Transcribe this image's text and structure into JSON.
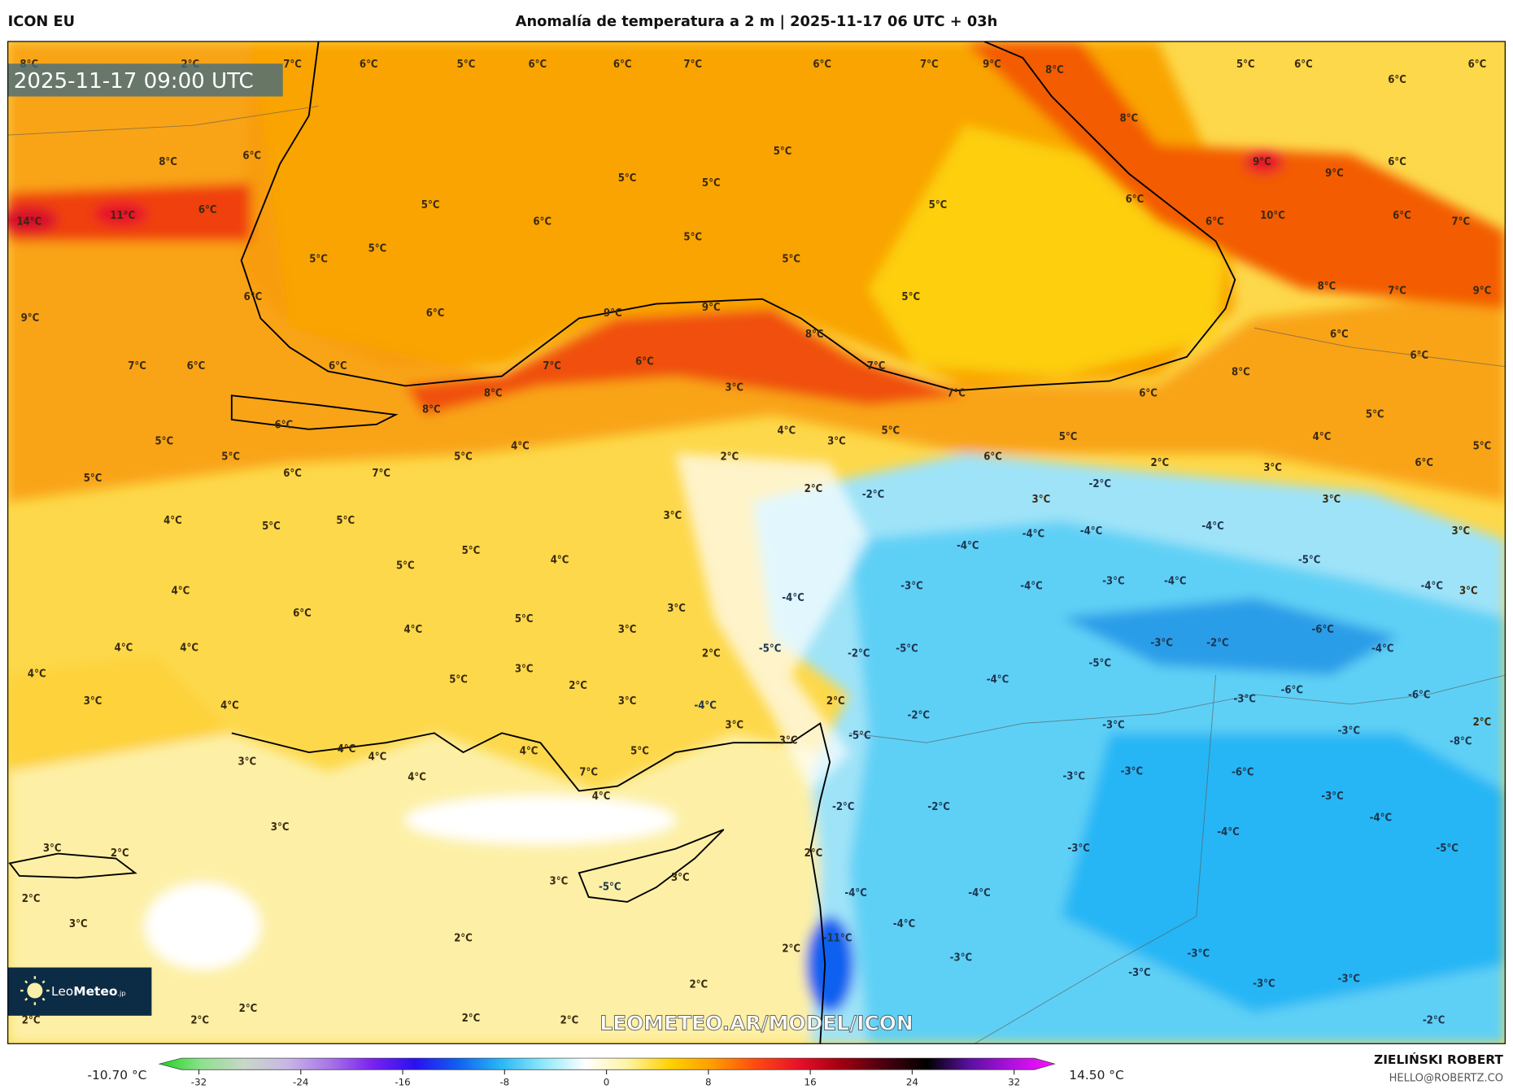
{
  "header": {
    "model": "ICON EU",
    "title": "Anomalía de temperatura a 2 m | 2025-11-17 06 UTC + 03h"
  },
  "map": {
    "valid_time": "2025-11-17 09:00 UTC",
    "watermark": "LEOMETEO.AR/MODEL/ICON",
    "logo": {
      "text_light": "Leo",
      "text_bold": "Meteo",
      "suffix": ".jp"
    },
    "colors": {
      "black_sea": "#f9a400",
      "land_warm": "#fdd23a",
      "sea_pale": "#fdf0a6",
      "cold": "#5fd0f5",
      "very_cold": "#1ba6e8",
      "hot": "#f35b06",
      "logo_bg": "#0c2b45"
    },
    "labels": [
      "8°C",
      "2°C",
      "7°C",
      "6°C",
      "5°C",
      "6°C",
      "6°C",
      "7°C",
      "6°C",
      "7°C",
      "9°C",
      "8°C",
      "5°C",
      "6°C",
      "6°C",
      "6°C",
      "8°C",
      "5°C",
      "8°C",
      "6°C",
      "5°C",
      "5°C",
      "9°C",
      "9°C",
      "6°C",
      "14°C",
      "11°C",
      "6°C",
      "5°C",
      "6°C",
      "5°C",
      "6°C",
      "6°C",
      "10°C",
      "6°C",
      "7°C",
      "5°C",
      "5°C",
      "5°C",
      "5°C",
      "8°C",
      "7°C",
      "9°C",
      "6°C",
      "5°C",
      "9°C",
      "6°C",
      "9°C",
      "9°C",
      "8°C",
      "6°C",
      "6°C",
      "7°C",
      "6°C",
      "6°C",
      "7°C",
      "6°C",
      "7°C",
      "8°C",
      "3°C",
      "7°C",
      "6°C",
      "8°C",
      "8°C",
      "5°C",
      "6°C",
      "4°C",
      "5°C",
      "3°C",
      "5°C",
      "4°C",
      "5°C",
      "4°C",
      "5°C",
      "5°C",
      "2°C",
      "6°C",
      "2°C",
      "5°C",
      "6°C",
      "5°C",
      "6°C",
      "7°C",
      "-2°C",
      "3°C",
      "2°C",
      "-2°C",
      "3°C",
      "3°C",
      "4°C",
      "5°C",
      "5°C",
      "3°C",
      "-4°C",
      "-4°C",
      "-4°C",
      "3°C",
      "5°C",
      "4°C",
      "-4°C",
      "-5°C",
      "5°C",
      "4°C",
      "-4°C",
      "-3°C",
      "-3°C",
      "-4°C",
      "-4°C",
      "3°C",
      "-4°C",
      "3°C",
      "6°C",
      "5°C",
      "-6°C",
      "4°C",
      "3°C",
      "-5°C",
      "-2°C",
      "-5°C",
      "-3°C",
      "-2°C",
      "-4°C",
      "4°C",
      "4°C",
      "2°C",
      "4°C",
      "-5°C",
      "3°C",
      "5°C",
      "-4°C",
      "2°C",
      "-6°C",
      "-6°C",
      "3°C",
      "4°C",
      "3°C",
      "2°C",
      "-4°C",
      "-3°C",
      "-2°C",
      "-3°C",
      "-3°C",
      "2°C",
      "3°C",
      "3°C",
      "-5°C",
      "-8°C",
      "4°C",
      "4°C",
      "4°C",
      "5°C",
      "3°C",
      "4°C",
      "7°C",
      "-3°C",
      "-3°C",
      "-6°C",
      "4°C",
      "-3°C",
      "-2°C",
      "-2°C",
      "-4°C",
      "3°C",
      "-4°C",
      "3°C",
      "2°C",
      "2°C",
      "-3°C",
      "-5°C",
      "3°C",
      "-5°C",
      "3°C",
      "2°C",
      "-4°C",
      "-4°C",
      "3°C",
      "-4°C",
      "2°C",
      "-11°C",
      "2°C",
      "-3°C",
      "-3°C",
      "-3°C",
      "-3°C",
      "-3°C",
      "2°C",
      "2°C",
      "2°C",
      "2°C",
      "2°C",
      "2°C",
      "-2°C"
    ]
  },
  "colorbar": {
    "min_label": "-10.70 °C",
    "max_label": "14.50 °C",
    "ticks": [
      "-32",
      "-24",
      "-16",
      "-8",
      "0",
      "8",
      "16",
      "24",
      "32"
    ],
    "range": [
      -32,
      32
    ],
    "stops": [
      "#1bd61b",
      "#8fe08f",
      "#c8d8c8",
      "#c9b6e6",
      "#a974e8",
      "#7a22f0",
      "#2a10f0",
      "#1060f0",
      "#28b6f5",
      "#8ee8fa",
      "#ffffff",
      "#fff3a0",
      "#ffd000",
      "#ff9a00",
      "#ff4a10",
      "#e8102a",
      "#a00010",
      "#4a0010",
      "#000000",
      "#5a10a0",
      "#b010e0",
      "#ff10ff"
    ]
  },
  "credit": {
    "author": "ZIELIŃSKI ROBERT",
    "email": "HELLO@ROBERTZ.CO"
  }
}
